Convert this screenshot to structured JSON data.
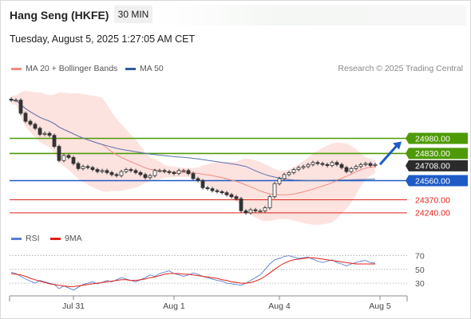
{
  "header": {
    "title": "Hang Seng (HKFE)",
    "timeframe": "30 MIN",
    "timestamp": "Tuesday, August 5, 2025 1:27:05 AM CET"
  },
  "legend_main": [
    {
      "label": "MA 20 + Bollinger Bands",
      "color": "#f08c84"
    },
    {
      "label": "MA 50",
      "color": "#2f5b9a"
    }
  ],
  "credit": "Research © 2025 Trading Central",
  "legend_rsi": [
    {
      "label": "RSI",
      "color": "#5a7fd1"
    },
    {
      "label": "9MA",
      "color": "#e0201b"
    }
  ],
  "chart_data": [
    {
      "type": "candlestick",
      "title": "Hang Seng (HKFE) 30 MIN",
      "x_ticks": [
        "Jul 31",
        "Aug 1",
        "Aug 4",
        "Aug 5"
      ],
      "price_range": [
        24120,
        25420
      ],
      "levels": [
        {
          "value": 24980,
          "label": "24980.00",
          "kind": "resistance",
          "color": "#4e9a06"
        },
        {
          "value": 24830,
          "label": "24830.00",
          "kind": "resistance",
          "color": "#4e9a06"
        },
        {
          "value": 24708,
          "label": "24708.00",
          "kind": "last",
          "color": "#2b2b2b"
        },
        {
          "value": 24560,
          "label": "24560.00",
          "kind": "pivot",
          "color": "#1e5bc6"
        },
        {
          "value": 24370,
          "label": "24370.00",
          "kind": "support",
          "color": "#e0201b"
        },
        {
          "value": 24240,
          "label": "24240.00",
          "kind": "support",
          "color": "#e0201b"
        }
      ],
      "close_series": [
        25360,
        25360,
        25230,
        25150,
        25120,
        25080,
        25020,
        25030,
        25010,
        24900,
        24760,
        24810,
        24790,
        24730,
        24680,
        24700,
        24690,
        24670,
        24650,
        24660,
        24640,
        24620,
        24610,
        24650,
        24670,
        24660,
        24640,
        24620,
        24590,
        24610,
        24660,
        24660,
        24650,
        24640,
        24630,
        24660,
        24660,
        24630,
        24580,
        24560,
        24490,
        24480,
        24460,
        24450,
        24440,
        24420,
        24400,
        24380,
        24260,
        24240,
        24270,
        24260,
        24260,
        24290,
        24400,
        24530,
        24580,
        24620,
        24640,
        24670,
        24690,
        24700,
        24720,
        24740,
        24730,
        24720,
        24710,
        24740,
        24720,
        24690,
        24650,
        24680,
        24700,
        24720,
        24730,
        24710,
        24720
      ],
      "rsi": {
        "levels": [
          70,
          50,
          30
        ],
        "range": [
          15,
          80
        ],
        "values": [
          46,
          44,
          40,
          36,
          33,
          30,
          34,
          32,
          30,
          28,
          22,
          26,
          23,
          20,
          24,
          28,
          30,
          32,
          29,
          31,
          34,
          32,
          35,
          38,
          36,
          34,
          32,
          35,
          38,
          42,
          40,
          44,
          46,
          48,
          44,
          42,
          40,
          42,
          45,
          43,
          40,
          38,
          36,
          34,
          33,
          30,
          29,
          28,
          27,
          30,
          34,
          38,
          42,
          50,
          58,
          64,
          66,
          69,
          70,
          68,
          66,
          67,
          68,
          65,
          62,
          60,
          62,
          64,
          60,
          58,
          55,
          58,
          60,
          62,
          63,
          60,
          59
        ],
        "ma9": [
          44,
          43,
          42,
          40,
          37,
          35,
          33,
          31,
          29,
          28,
          27,
          26,
          25,
          25,
          26,
          27,
          28,
          29,
          30,
          31,
          32,
          33,
          34,
          35,
          35,
          34,
          34,
          35,
          36,
          38,
          39,
          41,
          43,
          44,
          44,
          44,
          43,
          43,
          42,
          41,
          40,
          39,
          38,
          37,
          35,
          34,
          32,
          31,
          30,
          30,
          31,
          33,
          36,
          40,
          45,
          50,
          55,
          59,
          62,
          64,
          65,
          66,
          67,
          67,
          66,
          65,
          64,
          63,
          62,
          61,
          60,
          59,
          58,
          58,
          58,
          58,
          58
        ]
      }
    }
  ]
}
